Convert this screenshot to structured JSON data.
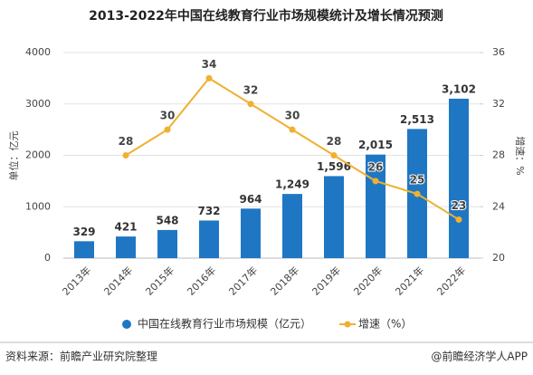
{
  "chart_data": {
    "type": "bar",
    "title": "2013-2022年中国在线教育行业市场规模统计及增长情况预测",
    "categories": [
      "2013年",
      "2014年",
      "2015年",
      "2016年",
      "2017年",
      "2018年",
      "2019年",
      "2020年",
      "2021年",
      "2022年"
    ],
    "series": [
      {
        "name": "中国在线教育行业市场规模（亿元）",
        "type": "bar",
        "color": "#1f77c4",
        "values": [
          329,
          421,
          548,
          732,
          964,
          1249,
          1596,
          2015,
          2513,
          3102
        ],
        "value_labels": [
          "329",
          "421",
          "548",
          "732",
          "964",
          "1,249",
          "1,596",
          "2,015",
          "2,513",
          "3,102"
        ]
      },
      {
        "name": "增速（%）",
        "type": "line",
        "axis": "y2",
        "color": "#f0b030",
        "values": [
          null,
          28,
          30,
          34,
          32,
          30,
          28,
          26,
          25,
          23
        ]
      }
    ],
    "ylabel": "单位：亿元",
    "y2label": "增速：%",
    "ylim": [
      0,
      4000
    ],
    "yticks": [
      0,
      1000,
      2000,
      3000,
      4000
    ],
    "y2lim": [
      20,
      36
    ],
    "y2ticks": [
      20,
      24,
      28,
      32,
      36
    ],
    "grid": true
  },
  "footer": {
    "source": "资料来源：前瞻产业研究院整理",
    "brand": "@前瞻经济学人APP"
  }
}
